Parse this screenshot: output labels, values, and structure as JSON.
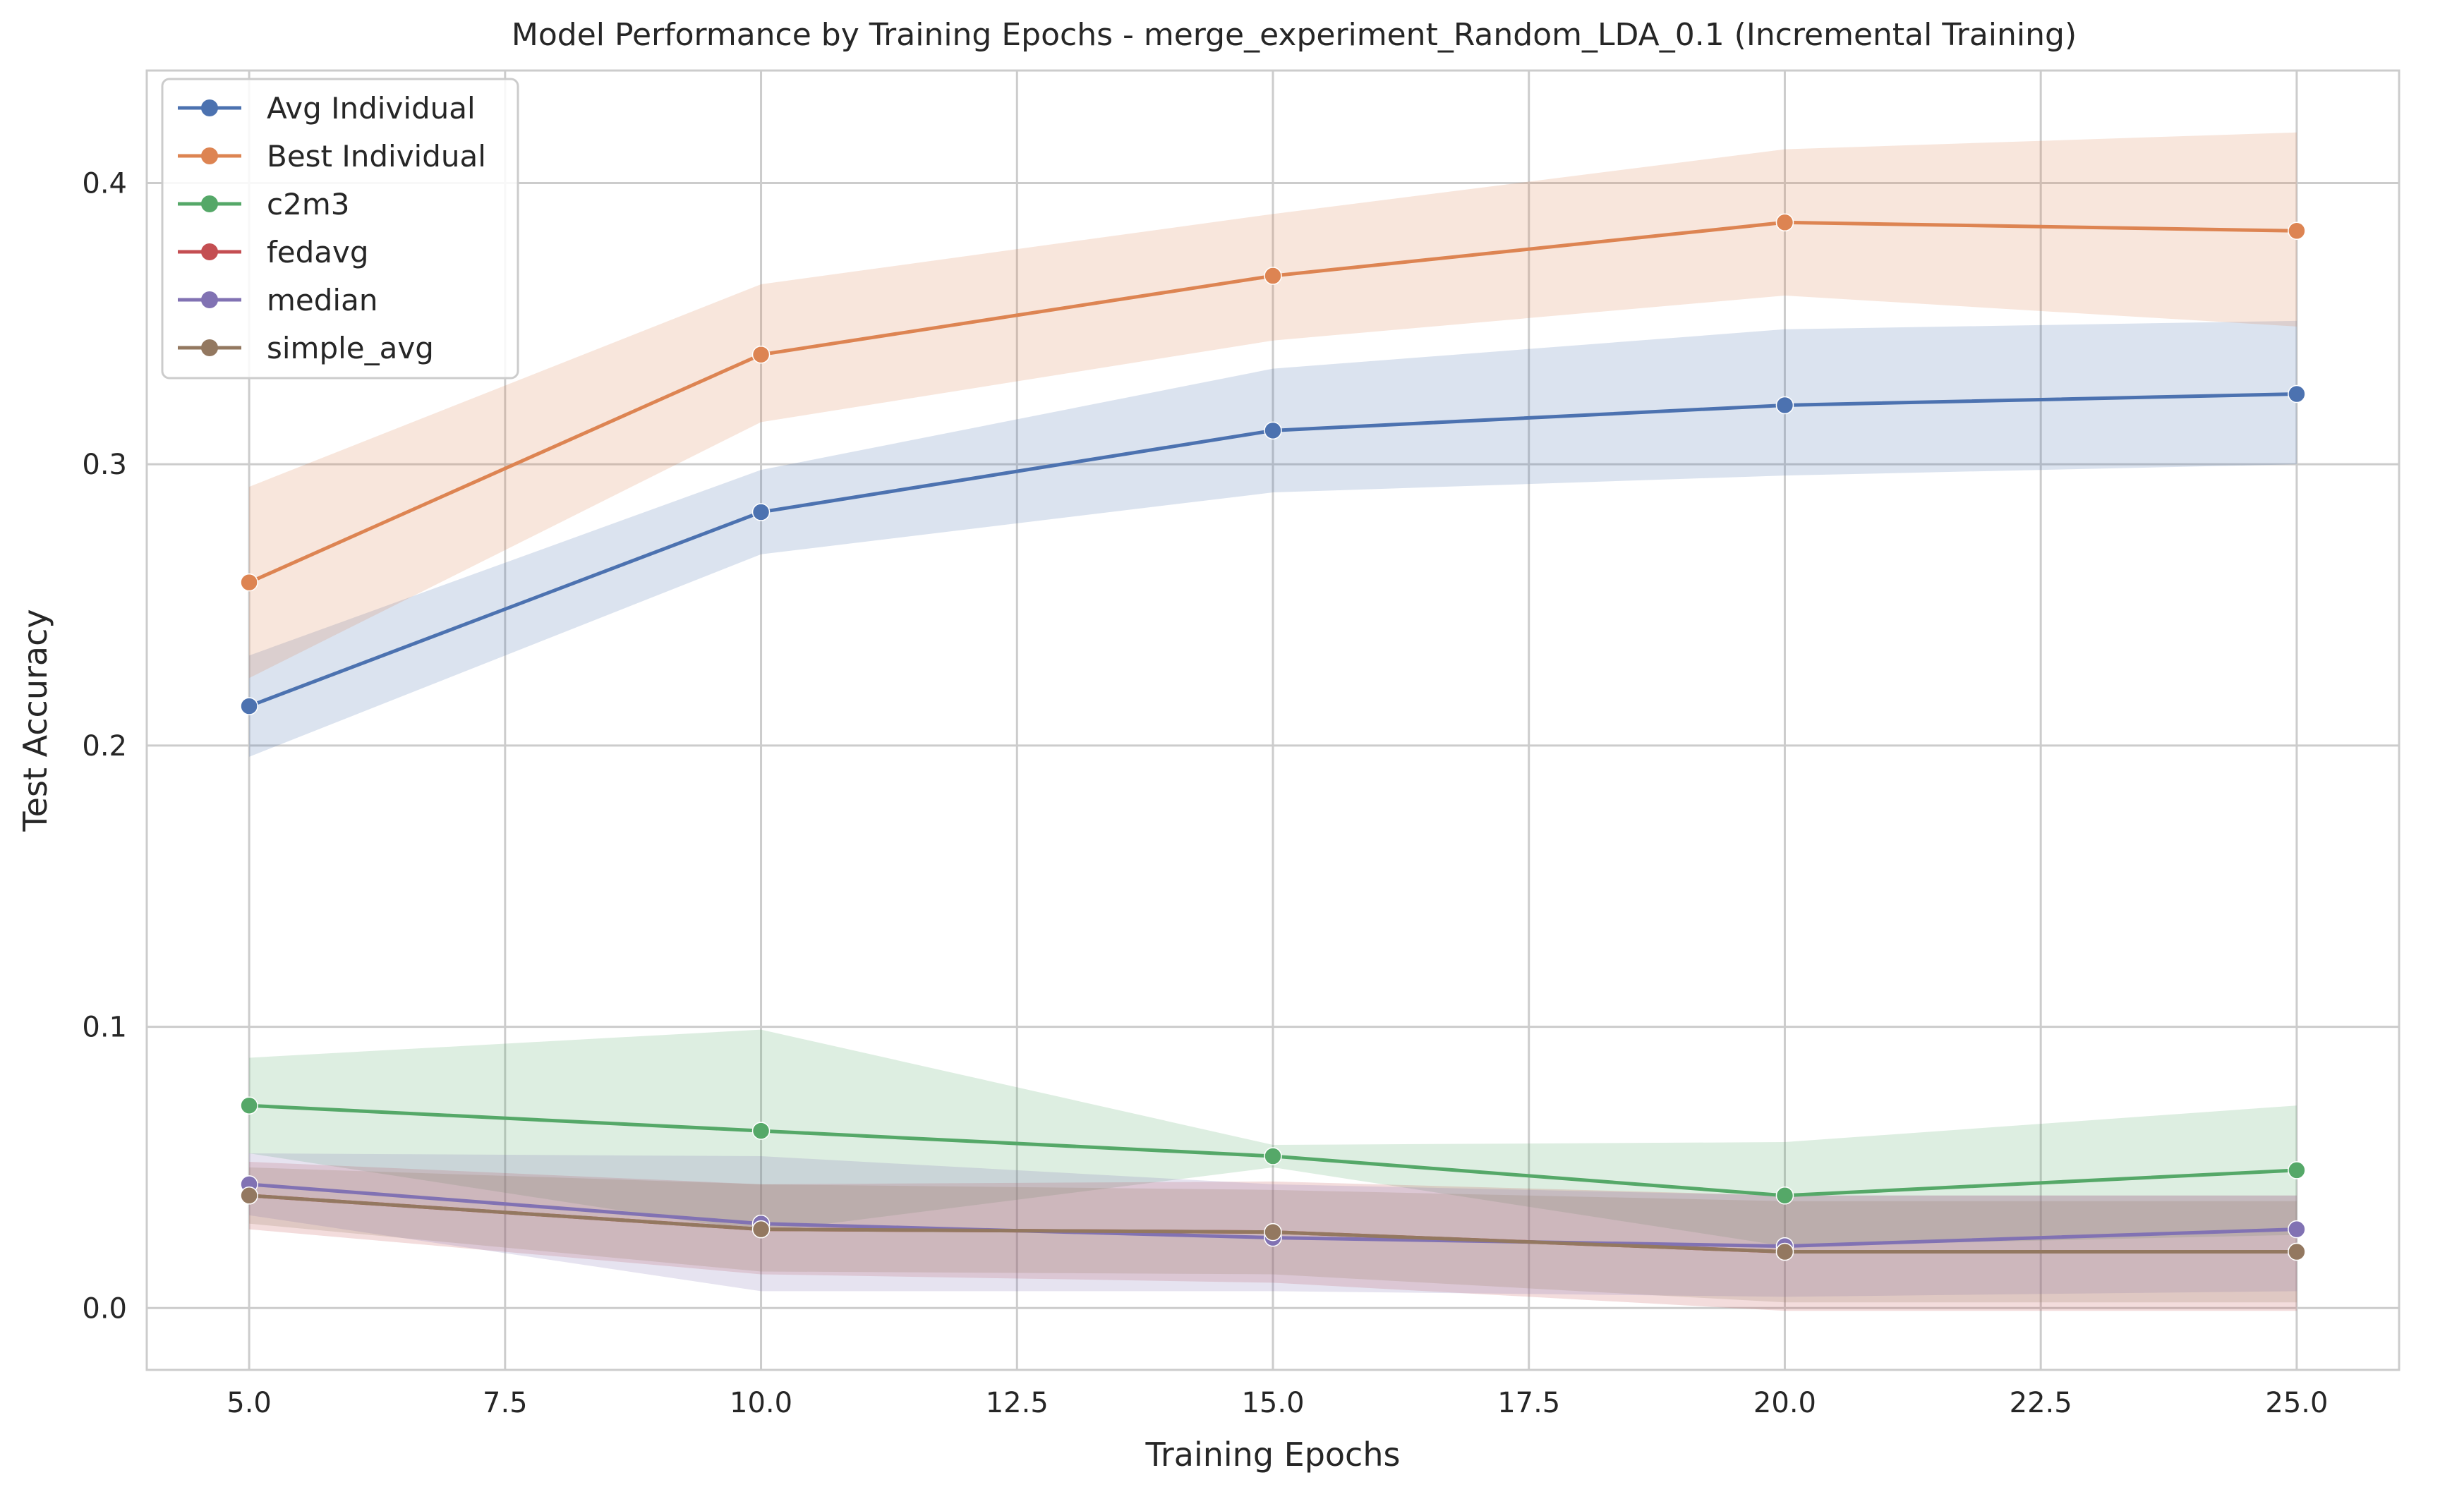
{
  "chart_data": {
    "type": "line",
    "title": "Model Performance by Training Epochs - merge_experiment_Random_LDA_0.1 (Incremental Training)",
    "xlabel": "Training Epochs",
    "ylabel": "Test Accuracy",
    "xlim": [
      4.0,
      26.0
    ],
    "ylim": [
      -0.022,
      0.44
    ],
    "xticks": [
      5.0,
      7.5,
      10.0,
      12.5,
      15.0,
      17.5,
      20.0,
      22.5,
      25.0
    ],
    "xtick_labels": [
      "5.0",
      "7.5",
      "10.0",
      "12.5",
      "15.0",
      "17.5",
      "20.0",
      "22.5",
      "25.0"
    ],
    "yticks": [
      0.0,
      0.1,
      0.2,
      0.3,
      0.4
    ],
    "ytick_labels": [
      "0.0",
      "0.1",
      "0.2",
      "0.3",
      "0.4"
    ],
    "grid": true,
    "legend_position": "top-left",
    "x": [
      5,
      10,
      15,
      20,
      25
    ],
    "series": [
      {
        "name": "Avg Individual",
        "color": "#4c72b0",
        "values": [
          0.214,
          0.283,
          0.312,
          0.321,
          0.325
        ],
        "lower": [
          0.196,
          0.268,
          0.29,
          0.296,
          0.3
        ],
        "upper": [
          0.232,
          0.298,
          0.334,
          0.348,
          0.351
        ]
      },
      {
        "name": "Best Individual",
        "color": "#dd8452",
        "values": [
          0.258,
          0.339,
          0.367,
          0.386,
          0.383
        ],
        "lower": [
          0.224,
          0.315,
          0.344,
          0.36,
          0.349
        ],
        "upper": [
          0.292,
          0.364,
          0.389,
          0.412,
          0.418
        ]
      },
      {
        "name": "c2m3",
        "color": "#55a868",
        "values": [
          0.072,
          0.063,
          0.054,
          0.04,
          0.049
        ],
        "lower": [
          0.055,
          0.027,
          0.05,
          0.022,
          0.026
        ],
        "upper": [
          0.089,
          0.099,
          0.058,
          0.059,
          0.072
        ]
      },
      {
        "name": "fedavg",
        "color": "#c44e52",
        "values": [
          0.04,
          0.028,
          0.027,
          0.02,
          0.02
        ],
        "lower": [
          0.028,
          0.012,
          0.009,
          -0.001,
          -0.001
        ],
        "upper": [
          0.052,
          0.044,
          0.045,
          0.04,
          0.04
        ]
      },
      {
        "name": "median",
        "color": "#8172b3",
        "values": [
          0.044,
          0.03,
          0.025,
          0.022,
          0.028
        ],
        "lower": [
          0.033,
          0.006,
          0.006,
          0.004,
          0.006
        ],
        "upper": [
          0.055,
          0.054,
          0.044,
          0.04,
          0.04
        ]
      },
      {
        "name": "simple_avg",
        "color": "#937860",
        "values": [
          0.04,
          0.028,
          0.027,
          0.02,
          0.02
        ],
        "lower": [
          0.03,
          0.013,
          0.012,
          0.002,
          0.002
        ],
        "upper": [
          0.05,
          0.044,
          0.042,
          0.038,
          0.038
        ]
      }
    ]
  }
}
